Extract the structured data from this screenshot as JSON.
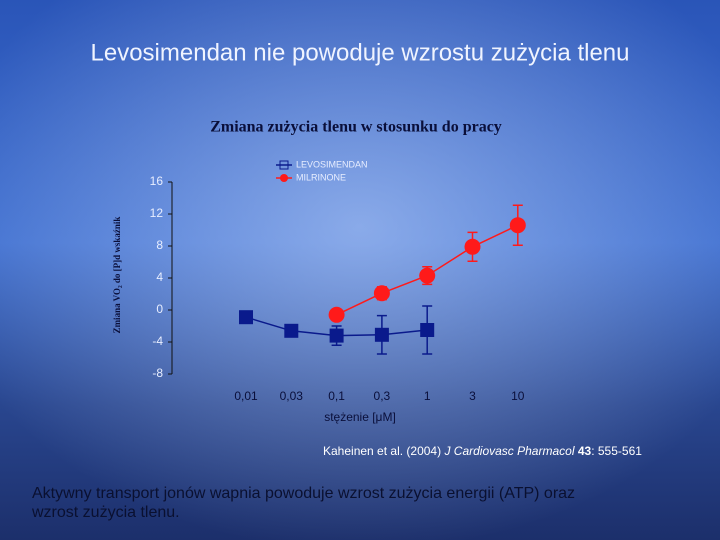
{
  "slide": {
    "title": "Levosimendan nie powoduje wzrostu zużycia tlenu",
    "citation": {
      "authors": "Kaheinen et al. (2004)",
      "journal": "J Cardiovasc Pharmacol",
      "volume": "43",
      "pages": ": 555-561"
    },
    "footer": [
      "Aktywny transport jonów wapnia powoduje wzrost zużycia energii (ATP) oraz",
      "wzrost zużycia tlenu."
    ]
  },
  "chart_data": {
    "type": "line",
    "title": "Zmiana zużycia tlenu w stosunku do pracy",
    "x_label": "stężenie [μM]",
    "y_label": "Zmiana VO₂ do [P]d wskaźnik",
    "categories": [
      "0,01",
      "0,03",
      "0,1",
      "0,3",
      "1",
      "3",
      "10"
    ],
    "series": [
      {
        "name": "LEVOSIMENDAN",
        "color": "#0a1a8c",
        "marker": "square",
        "values": [
          -0.9,
          -2.6,
          -3.2,
          -3.1,
          -2.5,
          null,
          null
        ],
        "errors": [
          null,
          null,
          1.2,
          2.4,
          3.0,
          null,
          null
        ]
      },
      {
        "name": "MILRINONE",
        "color": "#ff1a1a",
        "marker": "circle",
        "values": [
          null,
          null,
          -0.6,
          2.1,
          4.3,
          7.9,
          10.6
        ],
        "errors": [
          null,
          null,
          null,
          0.8,
          1.1,
          1.8,
          2.5
        ]
      }
    ],
    "ylim": [
      -8,
      16
    ],
    "yticks": [
      -8,
      -4,
      0,
      4,
      8,
      12,
      16
    ],
    "legend": "top",
    "grid": false
  }
}
